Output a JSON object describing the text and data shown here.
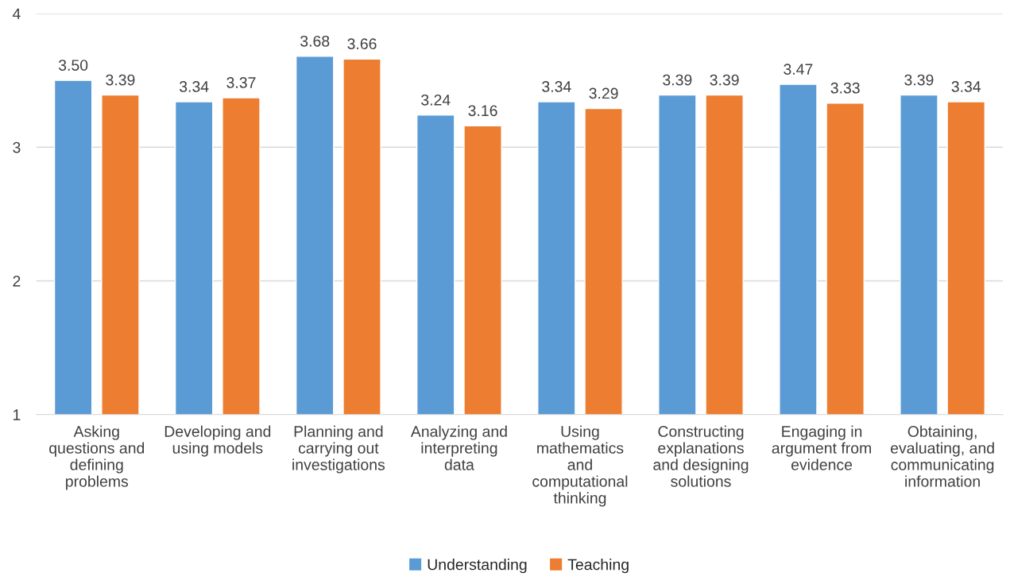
{
  "chart_data": {
    "type": "bar",
    "categories": [
      "Asking\nquestions and\ndefining\nproblems",
      "Developing and\nusing models",
      "Planning and\ncarrying out\ninvestigations",
      "Analyzing and\ninterpreting\ndata",
      "Using\nmathematics\nand\ncomputational\nthinking",
      "Constructing\nexplanations\nand designing\nsolutions",
      "Engaging in\nargument from\nevidence",
      "Obtaining,\nevaluating, and\ncommunicating\ninformation"
    ],
    "series": [
      {
        "name": "Understanding",
        "color": "#5b9bd5",
        "values": [
          3.5,
          3.34,
          3.68,
          3.24,
          3.34,
          3.39,
          3.47,
          3.39
        ],
        "value_labels": [
          "3.50",
          "3.34",
          "3.68",
          "3.24",
          "3.34",
          "3.39",
          "3.47",
          "3.39"
        ]
      },
      {
        "name": "Teaching",
        "color": "#ed7d31",
        "values": [
          3.39,
          3.37,
          3.66,
          3.16,
          3.29,
          3.39,
          3.33,
          3.34
        ],
        "value_labels": [
          "3.39",
          "3.37",
          "3.66",
          "3.16",
          "3.29",
          "3.39",
          "3.33",
          "3.34"
        ]
      }
    ],
    "ylim": [
      1,
      4
    ],
    "yticks": [
      1,
      2,
      3,
      4
    ],
    "grid": "y",
    "legend": "bottom"
  }
}
